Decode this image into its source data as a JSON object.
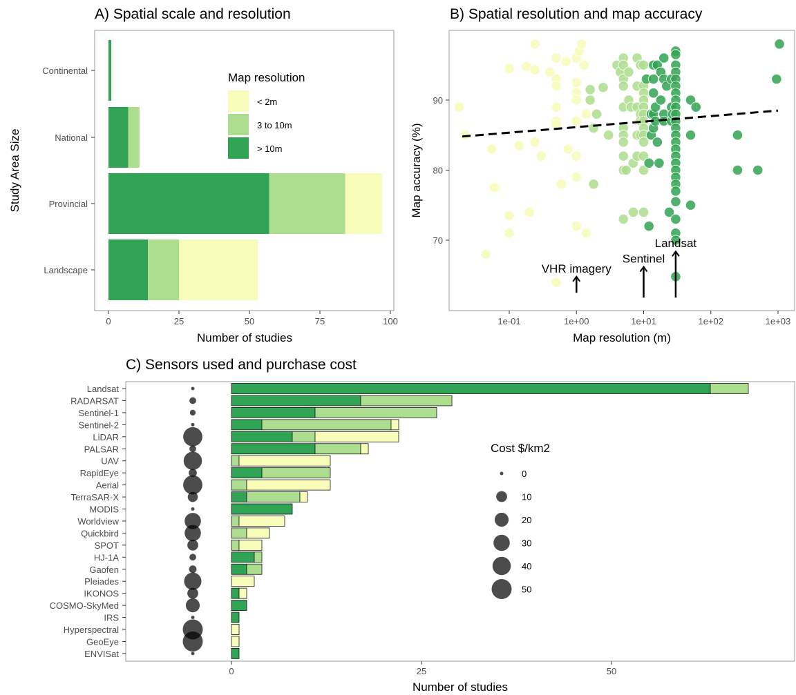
{
  "colors": {
    "gt10m": "#31a354",
    "m3to10": "#addd8e",
    "lt2m": "#f7fcb9",
    "bar_outline": "#1a1a1a",
    "cost_bubble": "#000000",
    "panel_border": "#999999",
    "trend_line": "#000000"
  },
  "chart_data": [
    {
      "id": "A",
      "type": "bar",
      "orientation": "horizontal",
      "stacked": true,
      "title": "A) Spatial scale and resolution",
      "xlabel": "Number of studies",
      "ylabel": "Study Area Size",
      "xlim": [
        0,
        100
      ],
      "xticks": [
        0,
        25,
        50,
        75,
        100
      ],
      "categories": [
        "Continental",
        "National",
        "Provincial",
        "Landscape"
      ],
      "series": [
        {
          "name": "> 10m",
          "color": "#31a354",
          "values": [
            1,
            7,
            57,
            14
          ]
        },
        {
          "name": "3 to 10m",
          "color": "#addd8e",
          "values": [
            0,
            4,
            27,
            11
          ]
        },
        {
          "name": "< 2m",
          "color": "#f7fcb9",
          "values": [
            0,
            0,
            13,
            28
          ]
        }
      ],
      "legend": {
        "title": "Map resolution",
        "position": "inside-top-right",
        "items": [
          "< 2m",
          "3 to 10m",
          "> 10m"
        ]
      },
      "grid": false
    },
    {
      "id": "B",
      "type": "scatter",
      "title": "B) Spatial resolution and map accuracy",
      "xlabel": "Map resolution (m)",
      "ylabel": "Map accuracy (%)",
      "x_scale": "log10",
      "xlim": [
        0.015,
        1400
      ],
      "ylim": [
        61.5,
        99.5
      ],
      "xtick_labels": [
        "1e-01",
        "1e+00",
        "1e+01",
        "1e+02",
        "1e+03"
      ],
      "xtick_values": [
        0.1,
        1,
        10,
        100,
        1000
      ],
      "ytick_values": [
        70,
        80,
        90
      ],
      "trend_line": {
        "style": "dashed",
        "x": [
          0.02,
          1000
        ],
        "y": [
          84.8,
          88.5
        ]
      },
      "annotations": [
        {
          "text": "VHR imagery",
          "x": 1,
          "arrow_from_y": 62.5,
          "arrow_to_y": 64.8
        },
        {
          "text": "Sentinel",
          "x": 10,
          "arrow_from_y": 61.8,
          "arrow_to_y": 66.2
        },
        {
          "text": "Landsat",
          "x": 30,
          "arrow_from_y": 61.8,
          "arrow_to_y": 68.4
        }
      ],
      "points": [
        [
          0.018,
          89
        ],
        [
          0.022,
          85
        ],
        [
          0.045,
          68
        ],
        [
          0.055,
          83
        ],
        [
          0.06,
          77.5
        ],
        [
          0.1,
          94.5
        ],
        [
          0.1,
          73.5
        ],
        [
          0.1,
          71
        ],
        [
          0.14,
          83.5
        ],
        [
          0.18,
          94.8
        ],
        [
          0.2,
          74
        ],
        [
          0.24,
          98
        ],
        [
          0.24,
          94.3
        ],
        [
          0.24,
          84
        ],
        [
          0.3,
          82
        ],
        [
          0.4,
          94
        ],
        [
          0.5,
          96
        ],
        [
          0.5,
          93
        ],
        [
          0.5,
          92
        ],
        [
          0.5,
          89
        ],
        [
          0.5,
          87
        ],
        [
          0.5,
          86.5
        ],
        [
          0.5,
          64
        ],
        [
          0.6,
          78
        ],
        [
          0.7,
          95.5
        ],
        [
          0.75,
          83
        ],
        [
          1,
          96
        ],
        [
          1,
          92.5
        ],
        [
          1,
          91
        ],
        [
          1,
          90
        ],
        [
          1,
          87
        ],
        [
          1,
          82
        ],
        [
          1,
          79
        ],
        [
          1,
          72
        ],
        [
          1.1,
          97
        ],
        [
          1.2,
          98
        ],
        [
          1.3,
          95
        ],
        [
          1.4,
          88
        ],
        [
          1.4,
          71
        ],
        [
          1.6,
          91.5
        ],
        [
          1.6,
          90
        ],
        [
          1.8,
          78
        ],
        [
          1.8,
          86
        ],
        [
          2,
          88
        ],
        [
          2.5,
          91.8
        ],
        [
          3,
          85
        ],
        [
          4,
          95
        ],
        [
          4.5,
          94
        ],
        [
          5,
          96
        ],
        [
          5,
          95
        ],
        [
          5,
          93
        ],
        [
          5,
          92
        ],
        [
          5,
          89
        ],
        [
          5,
          86
        ],
        [
          5,
          85
        ],
        [
          5,
          84
        ],
        [
          5,
          82
        ],
        [
          5,
          80
        ],
        [
          5,
          73
        ],
        [
          5.5,
          80
        ],
        [
          6,
          94
        ],
        [
          6,
          90
        ],
        [
          6.5,
          89
        ],
        [
          7,
          81
        ],
        [
          7,
          74
        ],
        [
          8,
          96
        ],
        [
          8,
          92
        ],
        [
          8,
          89
        ],
        [
          8,
          85
        ],
        [
          8,
          82
        ],
        [
          9,
          95
        ],
        [
          9,
          88
        ],
        [
          9,
          87
        ],
        [
          9,
          85
        ],
        [
          10,
          95
        ],
        [
          10,
          92
        ],
        [
          10,
          91
        ],
        [
          10,
          90
        ],
        [
          10,
          89
        ],
        [
          10,
          88
        ],
        [
          10,
          87
        ],
        [
          10,
          86
        ],
        [
          10,
          85
        ],
        [
          10,
          84
        ],
        [
          10,
          82
        ],
        [
          10,
          80
        ],
        [
          10,
          74
        ],
        [
          11,
          93
        ],
        [
          12,
          81
        ],
        [
          12,
          72
        ],
        [
          13,
          88
        ],
        [
          13,
          85
        ],
        [
          14,
          95
        ],
        [
          14,
          93
        ],
        [
          14,
          91
        ],
        [
          14,
          88
        ],
        [
          14,
          86
        ],
        [
          15,
          89
        ],
        [
          15,
          87
        ],
        [
          16,
          95
        ],
        [
          16,
          84
        ],
        [
          17,
          81
        ],
        [
          18,
          94
        ],
        [
          18,
          90
        ],
        [
          20,
          96
        ],
        [
          20,
          93
        ],
        [
          20,
          88
        ],
        [
          20,
          87
        ],
        [
          22,
          92
        ],
        [
          24,
          74
        ],
        [
          26,
          93
        ],
        [
          26,
          89
        ],
        [
          26,
          87
        ],
        [
          27,
          88
        ],
        [
          30,
          97
        ],
        [
          30,
          96.5
        ],
        [
          30,
          95
        ],
        [
          30,
          94
        ],
        [
          30,
          93
        ],
        [
          30,
          92
        ],
        [
          30,
          91
        ],
        [
          30,
          90
        ],
        [
          30,
          89
        ],
        [
          30,
          88
        ],
        [
          30,
          87
        ],
        [
          30,
          86
        ],
        [
          30,
          85
        ],
        [
          30,
          84
        ],
        [
          30,
          83
        ],
        [
          30,
          82
        ],
        [
          30,
          81
        ],
        [
          30,
          80
        ],
        [
          30,
          79
        ],
        [
          30,
          78
        ],
        [
          30,
          77
        ],
        [
          30,
          75.5
        ],
        [
          30,
          73
        ],
        [
          30,
          71
        ],
        [
          30,
          70
        ],
        [
          30,
          64.8
        ],
        [
          50,
          90
        ],
        [
          50,
          85
        ],
        [
          50,
          75
        ],
        [
          60,
          89
        ],
        [
          250,
          85
        ],
        [
          250,
          80
        ],
        [
          500,
          80
        ],
        [
          950,
          93
        ],
        [
          1050,
          98
        ]
      ],
      "point_color_rule": "lt2m if x<1.5, m3to10 if 1.5<=x<11, gt10m otherwise"
    },
    {
      "id": "C",
      "type": "bar",
      "orientation": "horizontal",
      "stacked": true,
      "title": "C) Sensors used and purchase cost",
      "xlabel": "Number of studies",
      "xlim": [
        0,
        72
      ],
      "xticks": [
        0,
        25,
        50
      ],
      "categories": [
        "Landsat",
        "RADARSAT",
        "Sentinel-1",
        "Sentinel-2",
        "LiDAR",
        "PALSAR",
        "UAV",
        "RapidEye",
        "Aerial",
        "TerraSAR-X",
        "MODIS",
        "Worldview",
        "Quickbird",
        "SPOT",
        "HJ-1A",
        "Gaofen",
        "Pleiades",
        "IKONOS",
        "COSMO-SkyMed",
        "IRS",
        "Hyperspectral",
        "GeoEye",
        "ENVISat"
      ],
      "series": [
        {
          "name": "> 10m",
          "color": "#31a354",
          "values": [
            63,
            17,
            11,
            4,
            8,
            11,
            0,
            4,
            0,
            2,
            8,
            0,
            0,
            0,
            3,
            2,
            0,
            1,
            2,
            1,
            0,
            0,
            1
          ]
        },
        {
          "name": "3 to 10m",
          "color": "#addd8e",
          "values": [
            5,
            12,
            16,
            17,
            3,
            6,
            1,
            9,
            2,
            7,
            0,
            1,
            2,
            1,
            1,
            2,
            0,
            0,
            0,
            0,
            0,
            0,
            0
          ]
        },
        {
          "name": "< 2m",
          "color": "#f7fcb9",
          "values": [
            0,
            0,
            0,
            1,
            11,
            1,
            12,
            0,
            11,
            1,
            0,
            6,
            3,
            3,
            0,
            0,
            3,
            1,
            0,
            0,
            1,
            1,
            0
          ]
        }
      ],
      "cost_per_km2": [
        0,
        2,
        1,
        0,
        45,
        2,
        40,
        4,
        45,
        8,
        0,
        30,
        30,
        10,
        2,
        3,
        35,
        10,
        20,
        0,
        50,
        50,
        0
      ],
      "size_legend": {
        "title": "Cost $/km2",
        "position": "inside-right",
        "items": [
          0,
          10,
          20,
          30,
          40,
          50
        ]
      },
      "grid": false
    }
  ]
}
